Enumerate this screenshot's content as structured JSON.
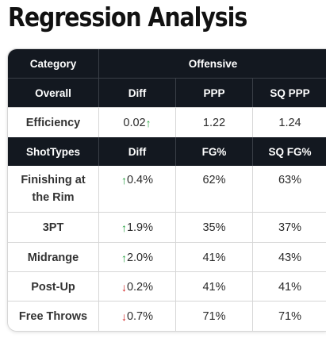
{
  "title": "Regression Analysis",
  "header": {
    "category_label": "Category",
    "group_label": "Offensive"
  },
  "overall_header": {
    "label": "Overall",
    "diff": "Diff",
    "ppp": "PPP",
    "sq_ppp": "SQ PPP"
  },
  "efficiency": {
    "label": "Efficiency",
    "diff": "0.02",
    "diff_dir": "up",
    "ppp": "1.22",
    "sq_ppp": "1.24"
  },
  "shot_header": {
    "label": "ShotTypes",
    "diff": "Diff",
    "fg": "FG%",
    "sq_fg": "SQ FG%"
  },
  "shot_rows": [
    {
      "label": "Finishing at the Rim",
      "diff": "0.4%",
      "diff_dir": "up",
      "fg": "62%",
      "sq_fg": "63%"
    },
    {
      "label": "3PT",
      "diff": "1.9%",
      "diff_dir": "up",
      "fg": "35%",
      "sq_fg": "37%"
    },
    {
      "label": "Midrange",
      "diff": "2.0%",
      "diff_dir": "up",
      "fg": "41%",
      "sq_fg": "43%"
    },
    {
      "label": "Post-Up",
      "diff": "0.2%",
      "diff_dir": "down",
      "fg": "41%",
      "sq_fg": "41%"
    },
    {
      "label": "Free Throws",
      "diff": "0.7%",
      "diff_dir": "down",
      "fg": "71%",
      "sq_fg": "71%"
    }
  ],
  "colors": {
    "header_bg": "#131820",
    "up_arrow": "#1f9e3a",
    "down_arrow": "#d11f1f"
  },
  "icons": {
    "up": "arrow-up-icon",
    "down": "arrow-down-icon"
  }
}
